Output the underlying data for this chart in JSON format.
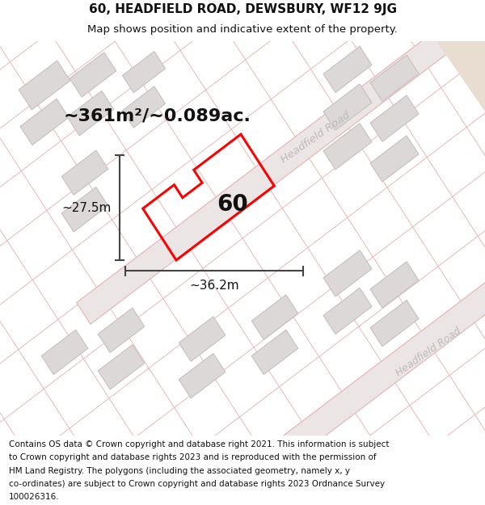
{
  "title_line1": "60, HEADFIELD ROAD, DEWSBURY, WF12 9JG",
  "title_line2": "Map shows position and indicative extent of the property.",
  "footer_lines": [
    "Contains OS data © Crown copyright and database right 2021. This information is subject",
    "to Crown copyright and database rights 2023 and is reproduced with the permission of",
    "HM Land Registry. The polygons (including the associated geometry, namely x, y",
    "co-ordinates) are subject to Crown copyright and database rights 2023 Ordnance Survey",
    "100026316."
  ],
  "area_label": "~361m²/~0.089ac.",
  "property_number": "60",
  "width_label": "~36.2m",
  "height_label": "~27.5m",
  "map_bg": "#f2eded",
  "road_line_color": "#e8b8b8",
  "road_fill_color": "#ede8e8",
  "building_fill": "#ddd8d8",
  "building_edge": "#c8c0c0",
  "plot_color": "#ff0000",
  "dim_color": "#444444",
  "road_label_color": "#bbbbbb",
  "road_label1": "Headfield Road",
  "road_label2": "Headfield Road",
  "title_fontsize": 11,
  "subtitle_fontsize": 9.5,
  "footer_fontsize": 7.5,
  "area_fontsize": 16,
  "number_fontsize": 20,
  "dim_fontsize": 11
}
